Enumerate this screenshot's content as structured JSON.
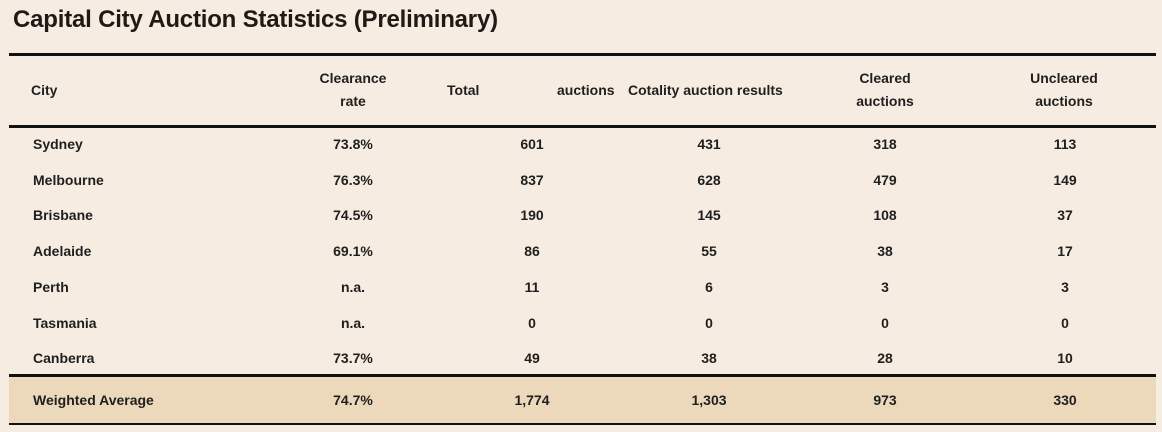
{
  "title": "Capital City Auction Statistics (Preliminary)",
  "columns": {
    "city": "City",
    "clearance_line1": "Clearance",
    "clearance_line2": "rate",
    "total": "Total",
    "auctions": "auctions",
    "cotality_a": "Cotality",
    "cotality_b": "auction results",
    "cleared_line1": "Cleared",
    "cleared_line2": "auctions",
    "uncleared_line1": "Uncleared",
    "uncleared_line2": "auctions"
  },
  "rows": [
    {
      "city": "Sydney",
      "clearance": "73.8%",
      "total": "601",
      "results": "431",
      "cleared": "318",
      "uncleared": "113"
    },
    {
      "city": "Melbourne",
      "clearance": "76.3%",
      "total": "837",
      "results": "628",
      "cleared": "479",
      "uncleared": "149"
    },
    {
      "city": "Brisbane",
      "clearance": "74.5%",
      "total": "190",
      "results": "145",
      "cleared": "108",
      "uncleared": "37"
    },
    {
      "city": "Adelaide",
      "clearance": "69.1%",
      "total": "86",
      "results": "55",
      "cleared": "38",
      "uncleared": "17"
    },
    {
      "city": "Perth",
      "clearance": "n.a.",
      "total": "11",
      "results": "6",
      "cleared": "3",
      "uncleared": "3"
    },
    {
      "city": "Tasmania",
      "clearance": "n.a.",
      "total": "0",
      "results": "0",
      "cleared": "0",
      "uncleared": "0"
    },
    {
      "city": "Canberra",
      "clearance": "73.7%",
      "total": "49",
      "results": "38",
      "cleared": "28",
      "uncleared": "10"
    }
  ],
  "average": {
    "city": "Weighted Average",
    "clearance": "74.7%",
    "total": "1,774",
    "results": "1,303",
    "cleared": "973",
    "uncleared": "330"
  },
  "colors": {
    "background": "#f6ece1",
    "average_band": "#ecd9bb",
    "rules": "#111111"
  }
}
